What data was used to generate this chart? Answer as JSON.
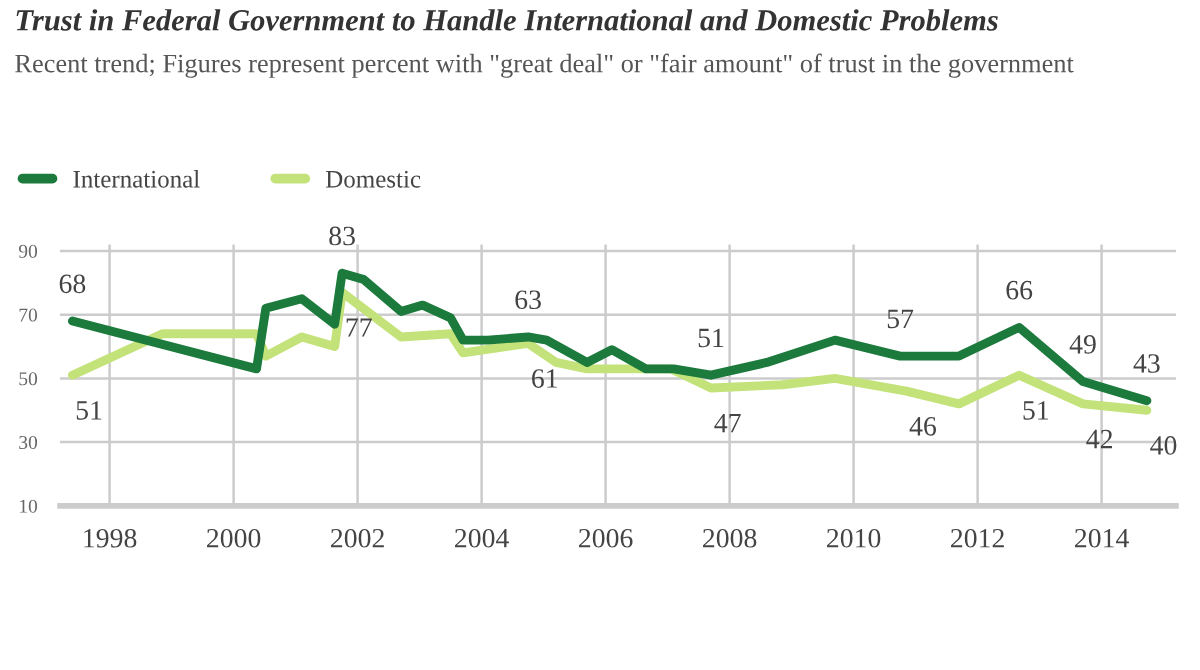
{
  "chart_data": {
    "type": "line",
    "title": "Trust in Federal Government to Handle International and Domestic Problems",
    "subtitle": "Recent trend; Figures represent percent with \"great deal\" or \"fair amount\" of trust in the government",
    "xlim": [
      1997.2,
      2015.2
    ],
    "xticks": [
      1998,
      2000,
      2002,
      2004,
      2006,
      2008,
      2010,
      2012,
      2014
    ],
    "ylim": [
      10,
      92
    ],
    "yticks": [
      10,
      30,
      50,
      70,
      90
    ],
    "grid": true,
    "legend": "top left",
    "series": [
      {
        "name": "International",
        "color": "#1b7a3c",
        "x": [
          1997.4,
          2000.37,
          2000.52,
          2001.1,
          2001.63,
          2001.75,
          2002.1,
          2002.7,
          2003.05,
          2003.5,
          2003.7,
          2004.1,
          2004.75,
          2005.05,
          2005.7,
          2006.1,
          2006.65,
          2007.1,
          2007.7,
          2008.6,
          2009.7,
          2010.75,
          2011.7,
          2012.67,
          2013.7,
          2014.73
        ],
        "values": [
          68,
          53,
          72,
          75,
          67,
          83,
          81,
          71,
          73,
          69,
          62,
          62,
          63,
          62,
          55,
          59,
          53,
          53,
          51,
          55,
          62,
          57,
          57,
          66,
          49,
          43
        ]
      },
      {
        "name": "Domestic",
        "color": "#c3e37a",
        "x": [
          1997.4,
          1998.85,
          2000.37,
          2000.52,
          2001.1,
          2001.63,
          2001.75,
          2002.7,
          2003.5,
          2003.7,
          2004.75,
          2005.2,
          2005.7,
          2007.05,
          2007.7,
          2008.85,
          2009.7,
          2010.85,
          2011.7,
          2012.67,
          2013.7,
          2014.73
        ],
        "values": [
          51,
          64,
          64,
          57,
          63,
          60,
          77,
          63,
          64,
          58,
          61,
          55,
          53,
          53,
          47,
          48,
          50,
          46,
          42,
          51,
          42,
          40
        ]
      }
    ],
    "annotations": [
      {
        "text": "68",
        "x": 1997.4,
        "y": 68
      },
      {
        "text": "83",
        "x": 2001.75,
        "y": 83
      },
      {
        "text": "63",
        "x": 2004.75,
        "y": 63
      },
      {
        "text": "51",
        "x": 2007.7,
        "y": 51
      },
      {
        "text": "57",
        "x": 2010.75,
        "y": 57
      },
      {
        "text": "66",
        "x": 2012.67,
        "y": 66
      },
      {
        "text": "49",
        "x": 2013.7,
        "y": 49
      },
      {
        "text": "43",
        "x": 2014.73,
        "y": 43
      },
      {
        "text": "51",
        "x": 1997.4,
        "y": 51
      },
      {
        "text": "77",
        "x": 2001.75,
        "y": 77
      },
      {
        "text": "61",
        "x": 2004.75,
        "y": 61
      },
      {
        "text": "47",
        "x": 2007.7,
        "y": 47
      },
      {
        "text": "46",
        "x": 2010.85,
        "y": 46
      },
      {
        "text": "51",
        "x": 2012.67,
        "y": 51
      },
      {
        "text": "42",
        "x": 2013.7,
        "y": 42
      },
      {
        "text": "40",
        "x": 2014.73,
        "y": 40
      }
    ]
  }
}
